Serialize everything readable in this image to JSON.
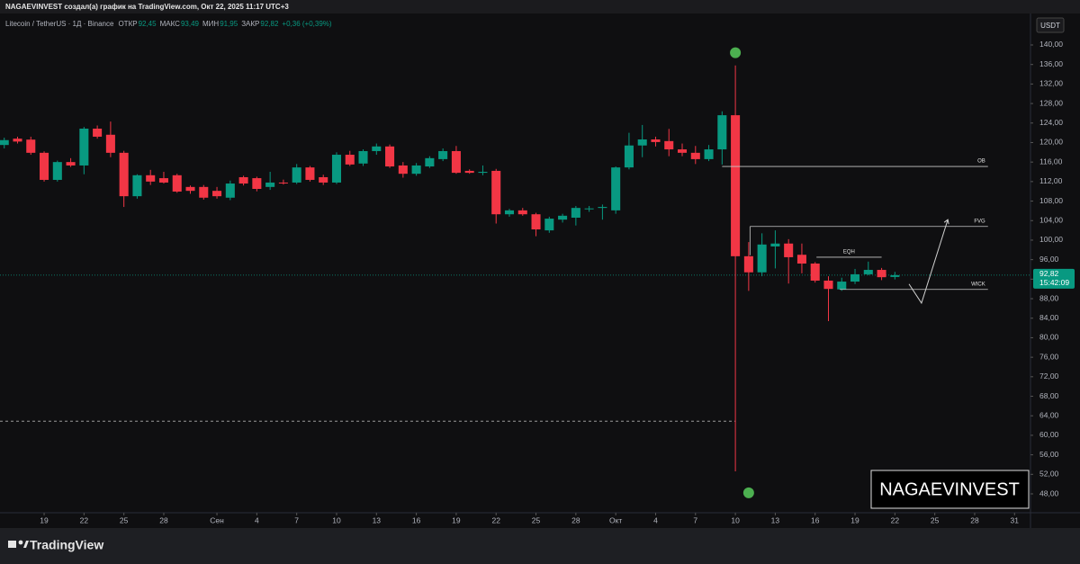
{
  "header": "NAGAEVINVEST создал(а) график на TradingView.com, Окт 22, 2025 11:17 UTC+3",
  "chart_data": {
    "type": "candlestick",
    "symbol": "Litecoin / TetherUS · 1Д · Binance",
    "legend_items": [
      {
        "label": "ОТКР",
        "value": "92,45"
      },
      {
        "label": "МАКС",
        "value": "93,49"
      },
      {
        "label": "МИН",
        "value": "91,95"
      },
      {
        "label": "ЗАКР",
        "value": "92,82"
      }
    ],
    "change": "+0,36 (+0,39%)",
    "currency": "USDT",
    "up_color": "#089981",
    "down_color": "#f23645",
    "x": [
      -3,
      -2,
      -1,
      0,
      1,
      2,
      3,
      4,
      5,
      6,
      7,
      8,
      9,
      10,
      11,
      12,
      13,
      14,
      15,
      16,
      17,
      18,
      19,
      20,
      21,
      22,
      23,
      24,
      25,
      26,
      27,
      28,
      29,
      30,
      31,
      32,
      33,
      34,
      35,
      36,
      37,
      38,
      39,
      40,
      41,
      42,
      43,
      44,
      45,
      46,
      47,
      48,
      49,
      50,
      51,
      52,
      53,
      54,
      55,
      56,
      57,
      58,
      59,
      60,
      61,
      62,
      63,
      64
    ],
    "open": [
      119.5,
      120.8,
      120.6,
      117.9,
      112.35,
      116,
      115.3,
      122.85,
      121.6,
      117.9,
      109,
      113.3,
      112.7,
      113.3,
      110.9,
      110.9,
      110.1,
      108.7,
      112.9,
      112.7,
      110.9,
      111.8,
      111.8,
      114.9,
      112.9,
      111.8,
      117.5,
      115.7,
      118.25,
      119.2,
      115.3,
      113.6,
      115.1,
      116.6,
      118.25,
      114.2,
      113.8,
      114.2,
      105.3,
      106.1,
      105.3,
      102,
      104.2,
      104.6,
      106.4,
      106.6,
      106.1,
      114.9,
      119.4,
      120.64,
      120.3,
      118.6,
      117.9,
      116.6,
      118.6,
      125.6,
      96.7,
      93.4,
      98.7,
      99.3,
      97,
      95.2,
      91.7,
      89.9,
      91.5,
      93,
      93.9,
      92.45
    ],
    "high": [
      121,
      121.2,
      121.2,
      118.2,
      116.3,
      116.8,
      123.2,
      123.5,
      124.3,
      118.3,
      113.5,
      114.4,
      114,
      113.6,
      111.2,
      111.3,
      110.9,
      112.2,
      113.2,
      113,
      114,
      112.4,
      115.6,
      115.2,
      113.4,
      118,
      118.3,
      118.6,
      119.8,
      119.6,
      116,
      115.8,
      117.2,
      118.8,
      119.3,
      114.5,
      115.3,
      114.6,
      106.4,
      106.6,
      105.6,
      104.8,
      105.4,
      107,
      107,
      107.3,
      115.1,
      122,
      123.6,
      121.2,
      122.8,
      119.8,
      119.3,
      119.5,
      126.4,
      135.8,
      99.6,
      101.4,
      102,
      100.2,
      99.3,
      95.5,
      92.6,
      92.3,
      94.1,
      95.6,
      94.3,
      93.49
    ],
    "low": [
      118.8,
      119.8,
      117.5,
      112,
      112,
      115,
      113.5,
      120.8,
      117,
      106.8,
      108.5,
      111.3,
      111.6,
      109.7,
      109.5,
      108.3,
      108.5,
      108.2,
      111.2,
      110,
      110.3,
      111.4,
      111.5,
      112,
      111.3,
      111.5,
      115.2,
      115.2,
      117.5,
      114.8,
      112.8,
      113.2,
      114.8,
      116.2,
      113.6,
      113.6,
      113.3,
      103.4,
      104.8,
      105,
      100.8,
      101.5,
      103.6,
      103,
      105.8,
      104.2,
      105.4,
      114.5,
      117,
      119.2,
      117.2,
      117.2,
      115.6,
      116.2,
      115.5,
      52.6,
      89.6,
      92.6,
      94.2,
      91.1,
      93.2,
      91.3,
      83.4,
      89.6,
      91,
      92.8,
      91.8,
      91.95
    ],
    "close": [
      120.5,
      120.2,
      117.9,
      112.35,
      116,
      115.3,
      122.85,
      121.2,
      117.9,
      109,
      113.3,
      112,
      111.8,
      109.95,
      110.1,
      108.7,
      109,
      111.6,
      111.6,
      110.5,
      111.8,
      111.7,
      114.9,
      112.35,
      111.8,
      117.5,
      115.5,
      118.25,
      119.2,
      115.1,
      113.6,
      115.3,
      116.8,
      118.25,
      113.8,
      113.8,
      114,
      105.3,
      106.1,
      105.3,
      102.2,
      104.4,
      105,
      106.6,
      106.5,
      106.8,
      114.9,
      119.4,
      120.64,
      120.1,
      118.6,
      117.9,
      116.6,
      118.6,
      125.6,
      96.7,
      93.4,
      99.1,
      99.3,
      96.5,
      95.2,
      91.7,
      90,
      91.5,
      93,
      93.9,
      92.4,
      92.82
    ],
    "xlim": [
      -3.32,
      74.2
    ],
    "xticks": [
      {
        "value": 0,
        "label": "19"
      },
      {
        "value": 3,
        "label": "22"
      },
      {
        "value": 6,
        "label": "25"
      },
      {
        "value": 9,
        "label": "28"
      },
      {
        "value": 13,
        "label": "Сен"
      },
      {
        "value": 16,
        "label": "4"
      },
      {
        "value": 19,
        "label": "7"
      },
      {
        "value": 22,
        "label": "10"
      },
      {
        "value": 25,
        "label": "13"
      },
      {
        "value": 28,
        "label": "16"
      },
      {
        "value": 31,
        "label": "19"
      },
      {
        "value": 34,
        "label": "22"
      },
      {
        "value": 37,
        "label": "25"
      },
      {
        "value": 40,
        "label": "28"
      },
      {
        "value": 43,
        "label": "Окт"
      },
      {
        "value": 46,
        "label": "4"
      },
      {
        "value": 49,
        "label": "7"
      },
      {
        "value": 52,
        "label": "10"
      },
      {
        "value": 55,
        "label": "13"
      },
      {
        "value": 58,
        "label": "16"
      },
      {
        "value": 61,
        "label": "19"
      },
      {
        "value": 64,
        "label": "22"
      },
      {
        "value": 67,
        "label": "25"
      },
      {
        "value": 70,
        "label": "28"
      },
      {
        "value": 73,
        "label": "31"
      }
    ],
    "ylim": [
      44.13,
      146.45
    ],
    "yticks": [
      {
        "value": 48,
        "label": "48,00"
      },
      {
        "value": 52,
        "label": "52,00"
      },
      {
        "value": 56,
        "label": "56,00"
      },
      {
        "value": 60,
        "label": "60,00"
      },
      {
        "value": 64,
        "label": "64,00"
      },
      {
        "value": 68,
        "label": "68,00"
      },
      {
        "value": 72,
        "label": "72,00"
      },
      {
        "value": 76,
        "label": "76,00"
      },
      {
        "value": 80,
        "label": "80,00"
      },
      {
        "value": 84,
        "label": "84,00"
      },
      {
        "value": 88,
        "label": "88,00"
      },
      {
        "value": 92,
        "label": "92,00"
      },
      {
        "value": 96,
        "label": "96,00"
      },
      {
        "value": 100,
        "label": "100,00"
      },
      {
        "value": 104,
        "label": "104,00"
      },
      {
        "value": 108,
        "label": "108,00"
      },
      {
        "value": 112,
        "label": "112,00"
      },
      {
        "value": 116,
        "label": "116,00"
      },
      {
        "value": 120,
        "label": "120,00"
      },
      {
        "value": 124,
        "label": "124,00"
      },
      {
        "value": 128,
        "label": "128,00"
      },
      {
        "value": 132,
        "label": "132,00"
      },
      {
        "value": 136,
        "label": "136,00"
      },
      {
        "value": 140,
        "label": "140,00"
      }
    ],
    "last_price": {
      "value": 92.82,
      "label": "92,82"
    },
    "countdown": "15:42:09",
    "levels": [
      {
        "label": "OB",
        "y": 115.1,
        "x": [
          51,
          71
        ]
      },
      {
        "label": "FVG",
        "y": 102.8,
        "x": [
          53.1,
          71
        ]
      },
      {
        "label": "EQH",
        "y": 96.5,
        "x": [
          58.1,
          63
        ]
      },
      {
        "label": "WICK",
        "y": 89.9,
        "x": [
          59.85,
          71
        ]
      }
    ],
    "dashed_level": {
      "y": 62.9,
      "x": [
        -3.32,
        52
      ]
    },
    "arrow": {
      "x": [
        65.06,
        66,
        67.98
      ],
      "y": [
        91,
        87.1,
        104.2
      ]
    },
    "markers": {
      "x": [
        52,
        53
      ],
      "y": [
        138.4,
        48.2
      ]
    },
    "watermark": "NAGAEVINVEST"
  },
  "footer": "TradingView"
}
